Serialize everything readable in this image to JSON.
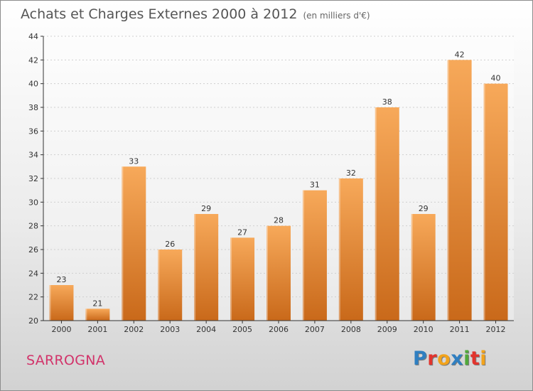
{
  "header": {
    "title": "Achats et Charges Externes 2000 à 2012",
    "subtitle": "(en milliers d'€)"
  },
  "footer": {
    "commune": "SARROGNA",
    "logo_text": "Proxiti",
    "logo_colors": [
      "#2f7fc1",
      "#e2342d",
      "#f2a31b",
      "#2f7fc1",
      "#51a83b",
      "#e2342d",
      "#f2a31b"
    ]
  },
  "colors": {
    "bar_top": "#f7a95a",
    "bar_bottom": "#c9691a",
    "bar_shade": "#a65210"
  },
  "chart_data": {
    "type": "bar",
    "categories": [
      "2000",
      "2001",
      "2002",
      "2003",
      "2004",
      "2005",
      "2006",
      "2007",
      "2008",
      "2009",
      "2010",
      "2011",
      "2012"
    ],
    "values": [
      23,
      21,
      33,
      26,
      29,
      27,
      28,
      31,
      32,
      38,
      29,
      42,
      40
    ],
    "ylim": [
      20,
      44
    ],
    "yticks": [
      20,
      22,
      24,
      26,
      28,
      30,
      32,
      34,
      36,
      38,
      40,
      42,
      44
    ],
    "grid": true,
    "legend": "none"
  }
}
